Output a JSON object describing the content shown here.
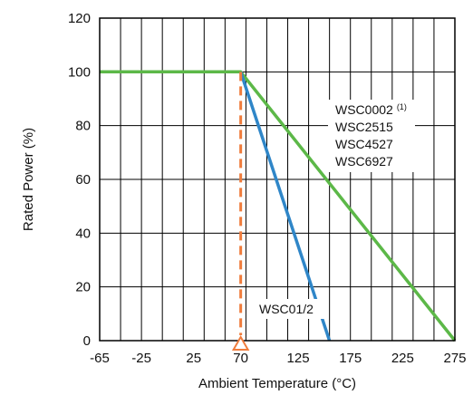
{
  "chart_data": {
    "type": "line",
    "title": "",
    "xlabel": "Ambient Temperature (°C)",
    "ylabel": "Rated Power (%)",
    "xlim": [
      -65,
      275
    ],
    "ylim": [
      0,
      120
    ],
    "xticks": [
      -65,
      -25,
      25,
      70,
      125,
      175,
      225,
      275
    ],
    "xtick_labels": [
      "-65",
      "-25",
      "25",
      "70",
      "125",
      "175",
      "225",
      "275"
    ],
    "yticks": [
      0,
      20,
      40,
      60,
      80,
      100,
      120
    ],
    "ytick_labels": [
      "0",
      "20",
      "40",
      "60",
      "80",
      "100",
      "120"
    ],
    "grid": true,
    "vertical_grid_step": 20,
    "series": [
      {
        "labels": [
          "WSC0002",
          "WSC2515",
          "WSC4527",
          "WSC6927"
        ],
        "label_superscript": "(1)",
        "color": "#5cb848",
        "x": [
          -65,
          70,
          275
        ],
        "y": [
          100,
          100,
          0
        ]
      },
      {
        "labels": [
          "WSC01/2"
        ],
        "color": "#2f86c8",
        "x": [
          70,
          155
        ],
        "y": [
          100,
          0
        ]
      }
    ],
    "annotations": [
      {
        "type": "vertical-dashed-line",
        "x": 70,
        "color": "#f07c3c"
      }
    ],
    "marker": {
      "shape": "triangle",
      "x": 70,
      "y": 0,
      "color": "#f07c3c"
    }
  }
}
